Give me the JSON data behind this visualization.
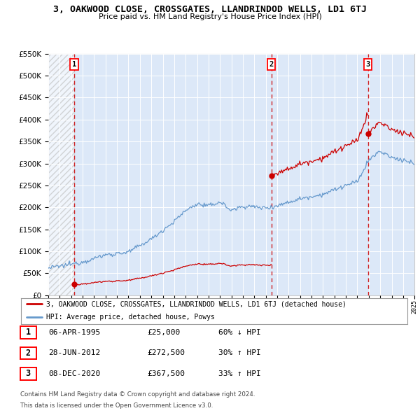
{
  "title": "3, OAKWOOD CLOSE, CROSSGATES, LLANDRINDOD WELLS, LD1 6TJ",
  "subtitle": "Price paid vs. HM Land Registry's House Price Index (HPI)",
  "property_label": "3, OAKWOOD CLOSE, CROSSGATES, LLANDRINDOD WELLS, LD1 6TJ (detached house)",
  "hpi_label": "HPI: Average price, detached house, Powys",
  "sales": [
    {
      "num": 1,
      "date": "06-APR-1995",
      "price": 25000,
      "year": 1995.27,
      "pct": "60% ↓ HPI"
    },
    {
      "num": 2,
      "date": "28-JUN-2012",
      "price": 272500,
      "year": 2012.49,
      "pct": "30% ↑ HPI"
    },
    {
      "num": 3,
      "date": "08-DEC-2020",
      "price": 367500,
      "year": 2020.93,
      "pct": "33% ↑ HPI"
    }
  ],
  "property_color": "#cc0000",
  "hpi_color": "#6699cc",
  "sale_marker_color": "#cc0000",
  "vline_color": "#cc0000",
  "background_color": "#ffffff",
  "plot_bg_color": "#dce8f8",
  "ylim": [
    0,
    550000
  ],
  "yticks": [
    0,
    50000,
    100000,
    150000,
    200000,
    250000,
    300000,
    350000,
    400000,
    450000,
    500000,
    550000
  ],
  "year_start": 1993,
  "year_end": 2025,
  "footer_line1": "Contains HM Land Registry data © Crown copyright and database right 2024.",
  "footer_line2": "This data is licensed under the Open Government Licence v3.0."
}
